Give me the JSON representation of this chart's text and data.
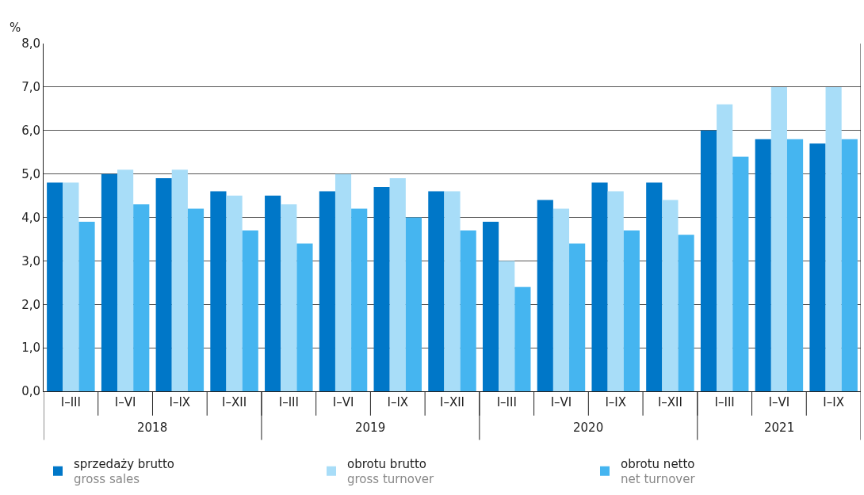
{
  "chart_data": {
    "type": "bar",
    "ylabel": "%",
    "categories": [
      "I–III",
      "I–VI",
      "I–IX",
      "I–XII",
      "I–III",
      "I–VI",
      "I–IX",
      "I–XII",
      "I–III",
      "I–VI",
      "I–IX",
      "I–XII",
      "I–III",
      "I–VI",
      "I–IX"
    ],
    "annotations": [
      "2018",
      "2019",
      "2020",
      "2021"
    ],
    "series": [
      {
        "name": "sprzedaży brutto\ngross sales",
        "color": "#0077c8",
        "values": [
          4.8,
          5.0,
          4.9,
          4.6,
          4.5,
          4.6,
          4.7,
          4.6,
          3.9,
          4.4,
          4.8,
          4.8,
          6.0,
          5.8,
          5.7
        ]
      },
      {
        "name": "obrotu brutto\ngross turnover",
        "color": "#a8ddf8",
        "values": [
          4.8,
          5.1,
          5.1,
          4.5,
          4.3,
          5.0,
          4.9,
          4.6,
          3.0,
          4.2,
          4.6,
          4.4,
          6.6,
          7.0,
          7.0
        ]
      },
      {
        "name": "obrotu netto\nnet turnover",
        "color": "#45b5f0",
        "values": [
          3.9,
          4.3,
          4.2,
          3.7,
          3.4,
          4.2,
          4.0,
          3.7,
          2.4,
          3.4,
          3.7,
          3.6,
          5.4,
          5.8,
          5.8
        ]
      }
    ],
    "ylim": [
      0,
      8
    ],
    "yticks": [
      {
        "value": 0,
        "label": "0,0"
      },
      {
        "value": 1,
        "label": "1,0"
      },
      {
        "value": 2,
        "label": "2,0"
      },
      {
        "value": 3,
        "label": "3,0"
      },
      {
        "value": 4,
        "label": "4,0"
      },
      {
        "value": 5,
        "label": "5,0"
      },
      {
        "value": 6,
        "label": "6,0"
      },
      {
        "value": 7,
        "label": "7,0"
      },
      {
        "value": 8,
        "label": "8,0"
      }
    ],
    "grid": "y",
    "legend": "bottom"
  }
}
